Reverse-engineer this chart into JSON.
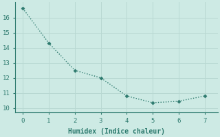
{
  "x": [
    0,
    1,
    2,
    3,
    4,
    5,
    6,
    7
  ],
  "y": [
    16.6,
    14.3,
    12.5,
    12.0,
    10.8,
    10.35,
    10.45,
    10.8
  ],
  "line_color": "#2d7a6e",
  "marker": "D",
  "marker_size": 2.5,
  "line_width": 1.0,
  "xlabel": "Humidex (Indice chaleur)",
  "xlabel_fontsize": 7,
  "xlim": [
    -0.3,
    7.5
  ],
  "ylim": [
    9.7,
    17.0
  ],
  "yticks": [
    10,
    11,
    12,
    13,
    14,
    15,
    16
  ],
  "xticks": [
    0,
    1,
    2,
    3,
    4,
    5,
    6,
    7
  ],
  "background_color": "#cdeae4",
  "grid_color": "#b8d8d2",
  "tick_fontsize": 6.5,
  "figsize": [
    3.2,
    2.0
  ],
  "dpi": 100
}
